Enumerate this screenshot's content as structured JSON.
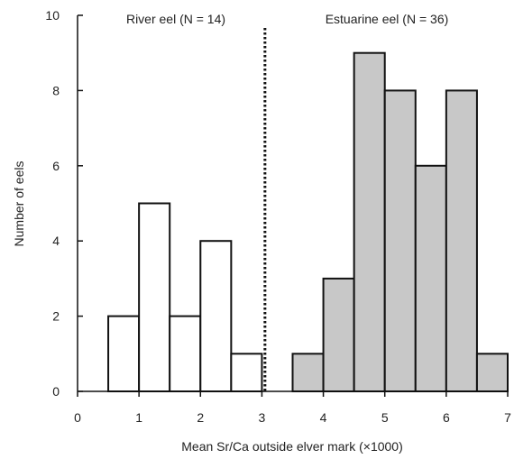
{
  "chart_data": {
    "type": "bar",
    "xlabel": "Mean Sr/Ca outside elver mark (×1000)",
    "ylabel": "Number of eels",
    "xlim": [
      0,
      7
    ],
    "ylim": [
      0,
      10
    ],
    "x_ticks": [
      "0",
      "1",
      "2",
      "3",
      "4",
      "5",
      "6",
      "7"
    ],
    "y_ticks": [
      "0",
      "2",
      "4",
      "6",
      "8",
      "10"
    ],
    "bin_width": 0.5,
    "series": [
      {
        "name": "River eel (N = 14)",
        "color": "#ffffff",
        "bins": [
          {
            "x0": 0.5,
            "value": 2
          },
          {
            "x0": 1.0,
            "value": 5
          },
          {
            "x0": 1.5,
            "value": 2
          },
          {
            "x0": 2.0,
            "value": 4
          },
          {
            "x0": 2.5,
            "value": 1
          }
        ]
      },
      {
        "name": "Estuarine eel (N = 36)",
        "color": "#c8c8c8",
        "bins": [
          {
            "x0": 3.5,
            "value": 1
          },
          {
            "x0": 4.0,
            "value": 3
          },
          {
            "x0": 4.5,
            "value": 9
          },
          {
            "x0": 5.0,
            "value": 8
          },
          {
            "x0": 5.5,
            "value": 6
          },
          {
            "x0": 6.0,
            "value": 8
          },
          {
            "x0": 6.5,
            "value": 1
          }
        ]
      }
    ],
    "divider_x": 3.05,
    "grid": false,
    "legend": "none"
  }
}
